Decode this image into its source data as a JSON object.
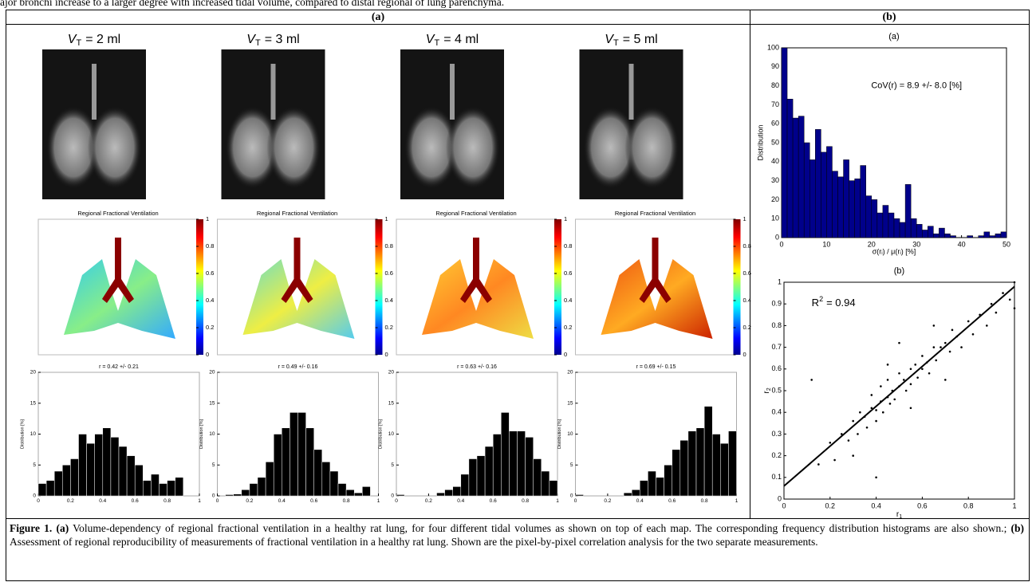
{
  "intro_text": "ajor bronchi increase to a larger degree with increased tidal volume, compared to distal regional of lung parenchyma.",
  "headers": [
    "(a)",
    "(b)"
  ],
  "volumes": [
    {
      "var": "V",
      "sub": "T",
      "rest": "= 2 ml"
    },
    {
      "var": "V",
      "sub": "T",
      "rest": "= 3 ml"
    },
    {
      "var": "V",
      "sub": "T",
      "rest": "= 4 ml"
    },
    {
      "var": "V",
      "sub": "T",
      "rest": "= 5 ml"
    }
  ],
  "map_title": "Regional Fractional Ventilation",
  "colorbar_ticks": [
    0,
    0.2,
    0.4,
    0.6,
    0.8,
    1
  ],
  "chart_data": [
    {
      "type": "histogram",
      "title": "r = 0.42 +/- 0.21",
      "ylabel": "Distribution [%]",
      "color": "#000000",
      "bins": [
        0,
        0.05,
        0.1,
        0.15,
        0.2,
        0.25,
        0.3,
        0.35,
        0.4,
        0.45,
        0.5,
        0.55,
        0.6,
        0.65,
        0.7,
        0.75,
        0.8,
        0.85,
        0.9,
        0.95,
        1
      ],
      "values": [
        2,
        2.5,
        4,
        5,
        6,
        10,
        8.5,
        10,
        11,
        9.5,
        8,
        6.5,
        5,
        2.5,
        3.5,
        2,
        2.5,
        3,
        0,
        0
      ],
      "xlim": [
        0,
        1
      ],
      "ylim": [
        0,
        20
      ],
      "xticks": [
        0,
        0.2,
        0.4,
        0.6,
        0.8,
        1
      ],
      "yticks": [
        0,
        5,
        10,
        15,
        20
      ]
    },
    {
      "type": "histogram",
      "title": "r = 0.49 +/- 0.16",
      "ylabel": "Distribution [%]",
      "color": "#000000",
      "bins": [
        0,
        0.05,
        0.1,
        0.15,
        0.2,
        0.25,
        0.3,
        0.35,
        0.4,
        0.45,
        0.5,
        0.55,
        0.6,
        0.65,
        0.7,
        0.75,
        0.8,
        0.85,
        0.9,
        0.95,
        1
      ],
      "values": [
        0,
        0.2,
        0.3,
        1,
        2,
        3,
        5.5,
        10,
        11,
        13.5,
        13.5,
        11,
        7.5,
        5.5,
        4,
        2,
        1,
        0.5,
        1.5,
        0
      ],
      "xlim": [
        0,
        1
      ],
      "ylim": [
        0,
        20
      ],
      "xticks": [
        0,
        0.2,
        0.4,
        0.6,
        0.8,
        1
      ],
      "yticks": [
        0,
        5,
        10,
        15,
        20
      ]
    },
    {
      "type": "histogram",
      "title": "r = 0.63 +/- 0.16",
      "ylabel": "Distribution [%]",
      "color": "#000000",
      "bins": [
        0,
        0.05,
        0.1,
        0.15,
        0.2,
        0.25,
        0.3,
        0.35,
        0.4,
        0.45,
        0.5,
        0.55,
        0.6,
        0.65,
        0.7,
        0.75,
        0.8,
        0.85,
        0.9,
        0.95,
        1
      ],
      "values": [
        0.2,
        0,
        0,
        0,
        0,
        0.5,
        1,
        1.5,
        3.5,
        6,
        6.5,
        8,
        10,
        13.5,
        10.5,
        10.5,
        9.5,
        6,
        4,
        2.5
      ],
      "xlim": [
        0,
        1
      ],
      "ylim": [
        0,
        20
      ],
      "xticks": [
        0,
        0.2,
        0.4,
        0.6,
        0.8,
        1
      ],
      "yticks": [
        0,
        5,
        10,
        15,
        20
      ]
    },
    {
      "type": "histogram",
      "title": "r = 0.69 +/- 0.15",
      "ylabel": "Distribution [%]",
      "color": "#000000",
      "bins": [
        0,
        0.05,
        0.1,
        0.15,
        0.2,
        0.25,
        0.3,
        0.35,
        0.4,
        0.45,
        0.5,
        0.55,
        0.6,
        0.65,
        0.7,
        0.75,
        0.8,
        0.85,
        0.9,
        0.95,
        1
      ],
      "values": [
        0.2,
        0,
        0,
        0,
        0,
        0,
        0.5,
        1,
        2.5,
        4,
        3,
        5,
        7.5,
        9,
        10.5,
        11,
        14.5,
        10,
        8.5,
        10.5
      ],
      "xlim": [
        0,
        1
      ],
      "ylim": [
        0,
        20
      ],
      "xticks": [
        0,
        0.2,
        0.4,
        0.6,
        0.8,
        1
      ],
      "yticks": [
        0,
        5,
        10,
        15,
        20
      ]
    },
    {
      "type": "histogram",
      "title": "(a)",
      "ylabel": "Distribution",
      "xlabel": "σ(rᵢ) / μ(rᵢ) [%]",
      "annotation": "CoV(r) = 8.9 +/- 8.0 [%]",
      "color": "#00008b",
      "bins": [
        0,
        1.25,
        2.5,
        3.75,
        5,
        6.25,
        7.5,
        8.75,
        10,
        11.25,
        12.5,
        13.75,
        15,
        16.25,
        17.5,
        18.75,
        20,
        21.25,
        22.5,
        23.75,
        25,
        26.25,
        27.5,
        28.75,
        30,
        31.25,
        32.5,
        33.75,
        35,
        36.25,
        37.5,
        38.75,
        40,
        41.25,
        42.5,
        43.75,
        45,
        46.25,
        47.5,
        48.75,
        50
      ],
      "values": [
        100,
        73,
        63,
        64,
        50,
        41,
        57,
        45,
        48,
        35,
        32,
        41,
        30,
        31,
        38,
        22,
        20,
        13,
        17,
        13,
        10,
        8,
        28,
        10,
        7,
        4,
        6,
        2,
        5,
        2,
        1,
        0,
        0,
        1,
        0,
        1,
        3,
        1,
        2,
        3
      ],
      "xlim": [
        0,
        50
      ],
      "ylim": [
        0,
        100
      ],
      "xticks": [
        0,
        10,
        20,
        30,
        40,
        50
      ],
      "yticks": [
        0,
        10,
        20,
        30,
        40,
        50,
        60,
        70,
        80,
        90,
        100
      ]
    },
    {
      "type": "scatter",
      "title": "(b)",
      "xlabel": {
        "main": "r",
        "sub": "1"
      },
      "ylabel": {
        "main": "r",
        "sub": "2"
      },
      "annotation": {
        "main": "R",
        "sup": "2",
        "rest": "= 0.94"
      },
      "color": "#000000",
      "x": [
        0.15,
        0.2,
        0.22,
        0.25,
        0.28,
        0.3,
        0.32,
        0.33,
        0.35,
        0.36,
        0.38,
        0.38,
        0.4,
        0.4,
        0.42,
        0.42,
        0.43,
        0.45,
        0.45,
        0.46,
        0.47,
        0.48,
        0.5,
        0.5,
        0.52,
        0.53,
        0.55,
        0.55,
        0.57,
        0.58,
        0.6,
        0.6,
        0.62,
        0.63,
        0.65,
        0.66,
        0.68,
        0.7,
        0.72,
        0.73,
        0.75,
        0.77,
        0.8,
        0.82,
        0.85,
        0.88,
        0.9,
        0.92,
        0.95,
        0.98,
        1,
        1,
        0.3,
        0.45,
        0.55,
        0.65,
        0.4,
        0.5,
        0.7,
        0.12
      ],
      "y": [
        0.16,
        0.26,
        0.18,
        0.3,
        0.27,
        0.36,
        0.3,
        0.4,
        0.38,
        0.33,
        0.42,
        0.48,
        0.41,
        0.36,
        0.45,
        0.52,
        0.4,
        0.47,
        0.55,
        0.44,
        0.5,
        0.46,
        0.52,
        0.58,
        0.55,
        0.5,
        0.6,
        0.53,
        0.62,
        0.56,
        0.6,
        0.66,
        0.63,
        0.58,
        0.7,
        0.64,
        0.7,
        0.72,
        0.68,
        0.78,
        0.75,
        0.7,
        0.82,
        0.76,
        0.85,
        0.8,
        0.9,
        0.86,
        0.95,
        0.92,
        1,
        0.88,
        0.2,
        0.62,
        0.42,
        0.8,
        0.1,
        0.72,
        0.55,
        0.55
      ],
      "fit": {
        "x": [
          0,
          1
        ],
        "y": [
          0.06,
          0.98
        ]
      },
      "xlim": [
        0,
        1
      ],
      "ylim": [
        0,
        1
      ],
      "xticks": [
        0,
        0.2,
        0.4,
        0.6,
        0.8,
        1
      ],
      "yticks": [
        0,
        0.1,
        0.2,
        0.3,
        0.4,
        0.5,
        0.6,
        0.7,
        0.8,
        0.9,
        1
      ]
    }
  ],
  "caption": {
    "label": "Figure 1.",
    "a": "(a)",
    "a_text": "Volume-dependency of regional fractional ventilation in a healthy rat lung, for four different tidal volumes as shown on top of each map. The corresponding frequency distribution histograms are also shown.;",
    "b": "(b)",
    "b_text": "Assessment of regional reproducibility of measurements of fractional ventilation in a healthy rat lung. Shown are the pixel-by-pixel correlation analysis for the two separate measurements."
  }
}
